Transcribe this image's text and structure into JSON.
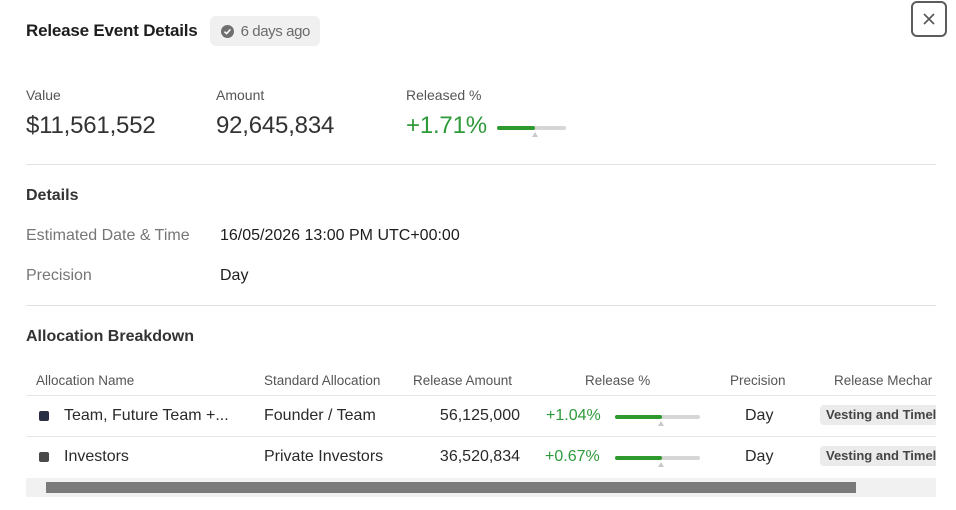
{
  "header": {
    "title": "Release Event Details",
    "badge": "6 days ago"
  },
  "stats": {
    "value_label": "Value",
    "value": "$11,561,552",
    "amount_label": "Amount",
    "amount": "92,645,834",
    "released_label": "Released %",
    "released": "+1.71%",
    "released_bar_fraction": 0.55
  },
  "details": {
    "title": "Details",
    "date_label": "Estimated Date & Time",
    "date_value": "16/05/2026 13:00 PM UTC+00:00",
    "precision_label": "Precision",
    "precision_value": "Day"
  },
  "allocation": {
    "title": "Allocation Breakdown",
    "columns": [
      "Allocation Name",
      "Standard Allocation",
      "Release Amount",
      "Release %",
      "Precision",
      "Release Mechar"
    ],
    "rows": [
      {
        "name": "Team, Future Team +...",
        "standard": "Founder / Team",
        "amount": "56,125,000",
        "pct": "+1.04%",
        "bar_fraction": 0.55,
        "precision": "Day",
        "mechanism": "Vesting and Timelo",
        "color": "#2b2f45"
      },
      {
        "name": "Investors",
        "standard": "Private Investors",
        "amount": "36,520,834",
        "pct": "+0.67%",
        "bar_fraction": 0.55,
        "precision": "Day",
        "mechanism": "Vesting and Timelo",
        "color": "#4a4a4a"
      }
    ]
  },
  "colors": {
    "green": "#2e9a3a",
    "bar_track": "#d6d6d6"
  }
}
